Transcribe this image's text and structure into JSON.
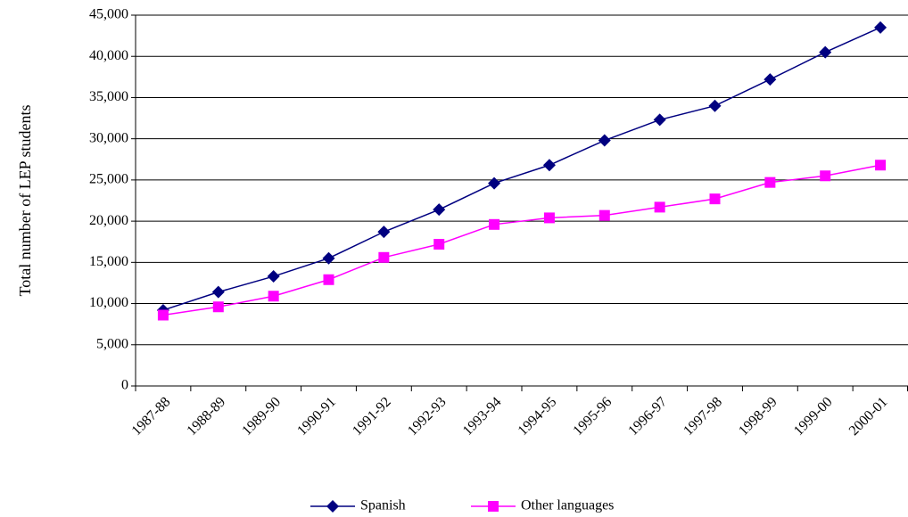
{
  "chart_data": {
    "type": "line",
    "y_label": "Total number of LEP students",
    "categories": [
      "1987-88",
      "1988-89",
      "1989-90",
      "1990-91",
      "1991-92",
      "1992-93",
      "1993-94",
      "1994-95",
      "1995-96",
      "1996-97",
      "1997-98",
      "1998-99",
      "1999-00",
      "2000-01"
    ],
    "series": [
      {
        "name": "Spanish",
        "color": "#000080",
        "marker": "diamond",
        "values": [
          9200,
          11400,
          13300,
          15500,
          18700,
          21400,
          24600,
          26800,
          29800,
          32300,
          34000,
          37200,
          40500,
          43500
        ]
      },
      {
        "name": "Other languages",
        "color": "#ff00ff",
        "marker": "square",
        "values": [
          8600,
          9600,
          10900,
          12900,
          15600,
          17200,
          19600,
          20400,
          20700,
          21700,
          22700,
          24700,
          25500,
          26800
        ]
      }
    ],
    "ylim": [
      0,
      45000
    ],
    "yticks": [
      0,
      {
        "value": 5000,
        "label": "5,000"
      },
      {
        "value": 10000,
        "label": "10,000"
      },
      {
        "value": 15000,
        "label": "15,000"
      },
      {
        "value": 20000,
        "label": "20,000"
      },
      {
        "value": 25000,
        "label": "25,000"
      },
      {
        "value": 30000,
        "label": "30,000"
      },
      {
        "value": 35000,
        "label": "35,000"
      },
      {
        "value": 40000,
        "label": "40,000"
      },
      {
        "value": 45000,
        "label": "45,000"
      }
    ],
    "grid": true,
    "legend": "bottom"
  }
}
